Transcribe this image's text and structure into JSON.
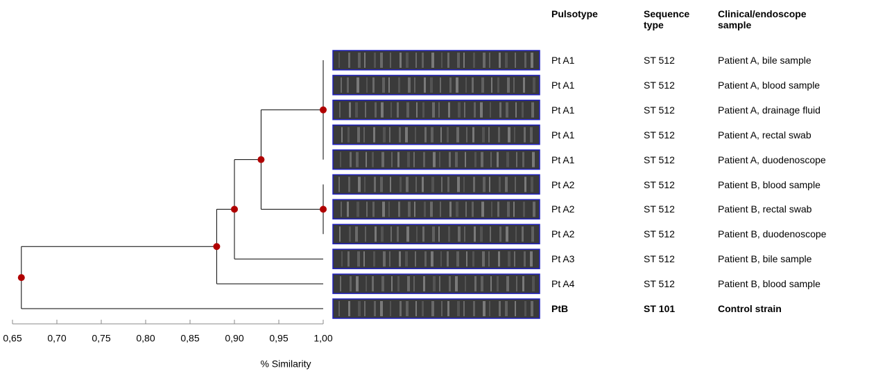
{
  "chart_data": {
    "type": "dendrogram",
    "x_label": "% Similarity",
    "xlim": [
      0.65,
      1.0
    ],
    "xticks": [
      {
        "value": 0.65,
        "label": "0,65"
      },
      {
        "value": 0.7,
        "label": "0,70"
      },
      {
        "value": 0.75,
        "label": "0,75"
      },
      {
        "value": 0.8,
        "label": "0,80"
      },
      {
        "value": 0.85,
        "label": "0,85"
      },
      {
        "value": 0.9,
        "label": "0,90"
      },
      {
        "value": 0.95,
        "label": "0,95"
      },
      {
        "value": 1.0,
        "label": "1,00"
      }
    ],
    "node_similarity": [
      1.0,
      1.0,
      0.93,
      0.9,
      0.88,
      0.66
    ],
    "node_color": "#b00000",
    "line_color": "#000000",
    "lane_border_color": "#2020c0",
    "table": {
      "headers": [
        "Pulsotype",
        "Sequence type",
        "Clinical/endoscope sample"
      ],
      "rows": [
        [
          "Pt A1",
          "ST 512",
          "Patient A, bile sample"
        ],
        [
          "Pt A1",
          "ST 512",
          "Patient A, blood sample"
        ],
        [
          "Pt A1",
          "ST 512",
          "Patient A, drainage fluid"
        ],
        [
          "Pt A1",
          "ST 512",
          "Patient A, rectal swab"
        ],
        [
          "Pt A1",
          "ST 512",
          "Patient A, duodenoscope"
        ],
        [
          "Pt A2",
          "ST 512",
          "Patient B, blood sample"
        ],
        [
          "Pt A2",
          "ST 512",
          "Patient B, rectal swab"
        ],
        [
          "Pt A2",
          "ST 512",
          "Patient B, duodenoscope"
        ],
        [
          "Pt A3",
          "ST 512",
          "Patient B, bile sample"
        ],
        [
          "Pt A4",
          "ST 512",
          "Patient B, blood sample"
        ],
        [
          "PtB",
          "ST 101",
          "Control strain"
        ]
      ]
    }
  }
}
